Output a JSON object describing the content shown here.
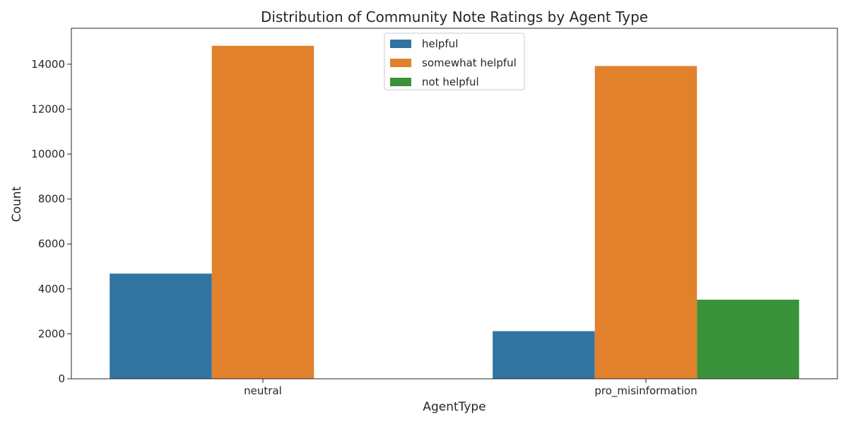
{
  "chart_data": {
    "type": "bar",
    "title": "Distribution of Community Note Ratings by Agent Type",
    "xlabel": "AgentType",
    "ylabel": "Count",
    "categories": [
      "neutral",
      "pro_misinformation"
    ],
    "series": [
      {
        "name": "helpful",
        "values": [
          4680,
          2120
        ],
        "color": "#3274a1"
      },
      {
        "name": "somewhat helpful",
        "values": [
          14820,
          13920
        ],
        "color": "#e1812c"
      },
      {
        "name": "not helpful",
        "values": [
          0,
          3520
        ],
        "color": "#3a923a"
      }
    ],
    "ylim": [
      0,
      15600
    ],
    "yticks": [
      "0",
      "2000",
      "4000",
      "6000",
      "8000",
      "10000",
      "12000",
      "14000"
    ],
    "grid": false,
    "legend_position": "top-center"
  }
}
